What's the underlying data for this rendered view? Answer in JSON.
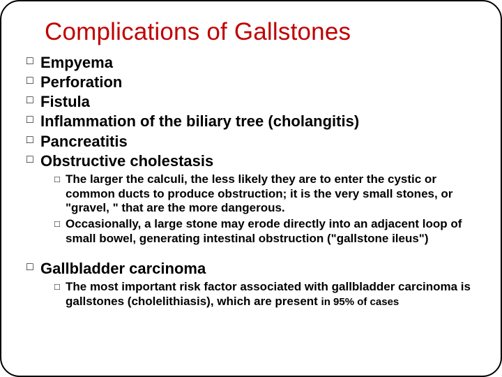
{
  "colors": {
    "title_color": "#c00000",
    "text_color": "#000000",
    "border_color": "#000000",
    "background_color": "#ffffff"
  },
  "typography": {
    "title_fontsize": 35,
    "level1_fontsize": 22,
    "level2_fontsize": 17,
    "font_family": "Arial"
  },
  "title": "Complications of Gallstones",
  "items": {
    "i1": "Empyema",
    "i2": "Perforation",
    "i3": "Fistula",
    "i4": "Inflammation of the biliary tree (cholangitis)",
    "i5": "Pancreatitis",
    "i6": "Obstructive cholestasis",
    "i6_sub1": "The larger the calculi, the less likely they are to enter the cystic or common ducts to produce obstruction; it is the very small stones, or \"gravel, \" that are the more dangerous.",
    "i6_sub2": "Occasionally, a large stone may erode directly into an adjacent loop of small bowel, generating intestinal obstruction (\"gallstone ileus\")",
    "i7": "Gallbladder carcinoma",
    "i7_sub1_a": "The most important risk factor associated with gallbladder carcinoma is gallstones (cholelithiasis), which are present ",
    "i7_sub1_b": "in 95% of cases"
  }
}
